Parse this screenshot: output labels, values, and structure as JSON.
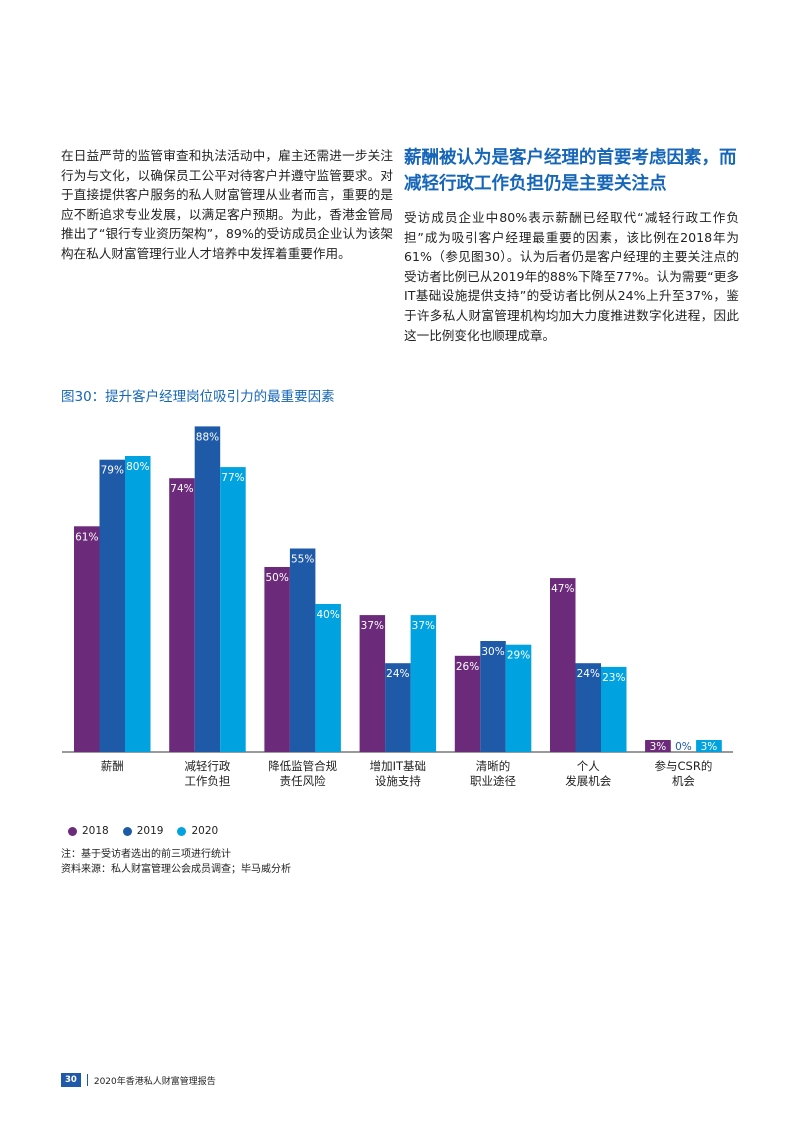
{
  "left_paragraph": "在日益严苛的监管审查和执法活动中，雇主还需进一步关注行为与文化，以确保员工公平对待客户并遵守监管要求。对于直接提供客户服务的私人财富管理从业者而言，重要的是应不断追求专业发展，以满足客户预期。为此，香港金管局推出了“银行专业资历架构”，89%的受访成员企业认为该架构在私人财富管理行业人才培养中发挥着重要作用。",
  "right_heading": "薪酬被认为是客户经理的首要考虑因素，而减轻行政工作负担仍是主要关注点",
  "right_paragraph": "受访成员企业中80%表示薪酬已经取代“减轻行政工作负担”成为吸引客户经理最重要的因素，该比例在2018年为61%（参见图30）。认为后者仍是客户经理的主要关注点的受访者比例已从2019年的88%下降至77%。认为需要“更多IT基础设施提供支持”的受访者比例从24%上升至37%，鉴于许多私人财富管理机构均加大力度推进数字化进程，因此这一比例变化也顺理成章。",
  "chart_title": "图30：提升客户经理岗位吸引力的最重要因素",
  "chart_data": {
    "type": "bar",
    "title": "图30：提升客户经理岗位吸引力的最重要因素",
    "categories": [
      "薪酬",
      "减轻行政\n工作负担",
      "降低监管合规\n责任风险",
      "增加IT基础\n设施支持",
      "清晰的\n职业途径",
      "个人\n发展机会",
      "参与CSR的\n机会"
    ],
    "series": [
      {
        "name": "2018",
        "color": "#6b2a7a",
        "values": [
          61,
          74,
          50,
          37,
          26,
          47,
          3
        ]
      },
      {
        "name": "2019",
        "color": "#1f5aa8",
        "values": [
          79,
          88,
          55,
          24,
          30,
          24,
          0
        ]
      },
      {
        "name": "2020",
        "color": "#00a3e0",
        "values": [
          80,
          77,
          40,
          37,
          29,
          23,
          3
        ]
      }
    ],
    "value_suffix": "%",
    "ylim": [
      0,
      100
    ],
    "grid": false,
    "legend_position": "bottom-left"
  },
  "legend": [
    {
      "label": "2018",
      "color": "#6b2a7a"
    },
    {
      "label": "2019",
      "color": "#1f5aa8"
    },
    {
      "label": "2020",
      "color": "#00a3e0"
    }
  ],
  "note_line1": "注：基于受访者选出的前三项进行统计",
  "note_line2": "资料来源：私人财富管理公会成员调查；毕马威分析",
  "footer": {
    "page_number": "30",
    "report_title": "2020年香港私人财富管理报告"
  }
}
